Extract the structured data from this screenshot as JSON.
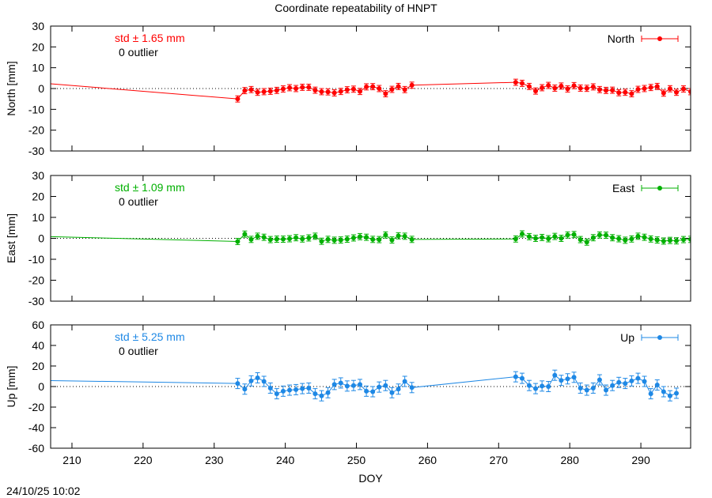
{
  "title": "Coordinate repeatability of HNPT",
  "timestamp": "24/10/25 10:02",
  "chart_data": [
    {
      "type": "line",
      "component": "North",
      "ylabel": "North [mm]",
      "xlabel": "",
      "ylim": [
        -30,
        30
      ],
      "yticks": [
        -30,
        -20,
        -10,
        0,
        10,
        20,
        30
      ],
      "xlim": [
        207,
        297
      ],
      "xticks": [
        210,
        220,
        230,
        240,
        250,
        260,
        270,
        280,
        290
      ],
      "color": "#ff0000",
      "std_label": "std ± 1.65 mm",
      "outlier_label": "0 outlier",
      "legend": "North",
      "legend_position": "top-right",
      "zero_line": true,
      "series": [
        {
          "name": "North",
          "points": [
            {
              "x": 207,
              "y": 2.3,
              "e": 0
            },
            {
              "x": 233.3,
              "y": -5.0,
              "e": 1.5
            },
            {
              "x": 234.3,
              "y": -1.0,
              "e": 1.5
            },
            {
              "x": 235.2,
              "y": -0.5,
              "e": 1.5
            },
            {
              "x": 236.1,
              "y": -1.8,
              "e": 1.5
            },
            {
              "x": 237.0,
              "y": -1.5,
              "e": 1.5
            },
            {
              "x": 237.9,
              "y": -1.3,
              "e": 1.5
            },
            {
              "x": 238.8,
              "y": -0.9,
              "e": 1.5
            },
            {
              "x": 239.7,
              "y": -0.2,
              "e": 1.5
            },
            {
              "x": 240.6,
              "y": 0.4,
              "e": 1.5
            },
            {
              "x": 241.5,
              "y": 0.0,
              "e": 1.5
            },
            {
              "x": 242.4,
              "y": 0.6,
              "e": 1.5
            },
            {
              "x": 243.3,
              "y": 0.6,
              "e": 1.5
            },
            {
              "x": 244.2,
              "y": -0.8,
              "e": 1.5
            },
            {
              "x": 245.1,
              "y": -1.5,
              "e": 1.5
            },
            {
              "x": 246.0,
              "y": -1.6,
              "e": 1.5
            },
            {
              "x": 246.9,
              "y": -2.1,
              "e": 1.5
            },
            {
              "x": 247.8,
              "y": -1.4,
              "e": 1.5
            },
            {
              "x": 248.7,
              "y": -0.6,
              "e": 1.5
            },
            {
              "x": 249.6,
              "y": -0.3,
              "e": 1.5
            },
            {
              "x": 250.5,
              "y": -1.4,
              "e": 1.5
            },
            {
              "x": 251.4,
              "y": 0.8,
              "e": 1.5
            },
            {
              "x": 252.3,
              "y": 0.9,
              "e": 1.5
            },
            {
              "x": 253.2,
              "y": 0.0,
              "e": 1.5
            },
            {
              "x": 254.1,
              "y": -2.5,
              "e": 1.5
            },
            {
              "x": 255.0,
              "y": -0.4,
              "e": 1.5
            },
            {
              "x": 255.9,
              "y": 1.0,
              "e": 1.5
            },
            {
              "x": 256.8,
              "y": -0.5,
              "e": 1.5
            },
            {
              "x": 257.8,
              "y": 1.6,
              "e": 1.5
            },
            {
              "x": 272.4,
              "y": 3.0,
              "e": 1.5
            },
            {
              "x": 273.3,
              "y": 2.5,
              "e": 1.5
            },
            {
              "x": 274.3,
              "y": 1.0,
              "e": 1.5
            },
            {
              "x": 275.2,
              "y": -1.2,
              "e": 1.5
            },
            {
              "x": 276.1,
              "y": 0.4,
              "e": 1.5
            },
            {
              "x": 277.0,
              "y": 1.5,
              "e": 1.5
            },
            {
              "x": 277.9,
              "y": 0.2,
              "e": 1.5
            },
            {
              "x": 278.8,
              "y": 1.2,
              "e": 1.5
            },
            {
              "x": 279.7,
              "y": -0.2,
              "e": 1.5
            },
            {
              "x": 280.6,
              "y": 1.4,
              "e": 1.5
            },
            {
              "x": 281.5,
              "y": 0.2,
              "e": 1.5
            },
            {
              "x": 282.4,
              "y": 0.1,
              "e": 1.5
            },
            {
              "x": 283.3,
              "y": 0.8,
              "e": 1.5
            },
            {
              "x": 284.2,
              "y": -0.5,
              "e": 1.5
            },
            {
              "x": 285.1,
              "y": -0.9,
              "e": 1.5
            },
            {
              "x": 286.0,
              "y": -0.8,
              "e": 1.5
            },
            {
              "x": 286.9,
              "y": -2.0,
              "e": 1.5
            },
            {
              "x": 287.8,
              "y": -1.8,
              "e": 1.5
            },
            {
              "x": 288.7,
              "y": -2.5,
              "e": 1.5
            },
            {
              "x": 289.6,
              "y": -0.4,
              "e": 1.5
            },
            {
              "x": 290.5,
              "y": 0.0,
              "e": 1.5
            },
            {
              "x": 291.4,
              "y": 0.5,
              "e": 1.5
            },
            {
              "x": 292.3,
              "y": 1.0,
              "e": 1.5
            },
            {
              "x": 293.2,
              "y": -2.2,
              "e": 1.5
            },
            {
              "x": 294.1,
              "y": -0.1,
              "e": 1.5
            },
            {
              "x": 295.0,
              "y": -1.8,
              "e": 1.5
            },
            {
              "x": 296.0,
              "y": -0.2,
              "e": 1.5
            },
            {
              "x": 297.0,
              "y": -1.5,
              "e": 1.5
            }
          ]
        }
      ]
    },
    {
      "type": "line",
      "component": "East",
      "ylabel": "East [mm]",
      "xlabel": "",
      "ylim": [
        -30,
        30
      ],
      "yticks": [
        -30,
        -20,
        -10,
        0,
        10,
        20,
        30
      ],
      "xlim": [
        207,
        297
      ],
      "xticks": [
        210,
        220,
        230,
        240,
        250,
        260,
        270,
        280,
        290
      ],
      "color": "#00b000",
      "std_label": "std ± 1.09 mm",
      "outlier_label": "0 outlier",
      "legend": "East",
      "legend_position": "top-right",
      "zero_line": true,
      "series": [
        {
          "name": "East",
          "points": [
            {
              "x": 207,
              "y": 0.8,
              "e": 0
            },
            {
              "x": 233.3,
              "y": -1.5,
              "e": 1.5
            },
            {
              "x": 234.3,
              "y": 2.0,
              "e": 1.5
            },
            {
              "x": 235.2,
              "y": -0.5,
              "e": 1.5
            },
            {
              "x": 236.1,
              "y": 1.0,
              "e": 1.5
            },
            {
              "x": 237.0,
              "y": 0.5,
              "e": 1.5
            },
            {
              "x": 237.9,
              "y": -0.6,
              "e": 1.5
            },
            {
              "x": 238.8,
              "y": -0.4,
              "e": 1.5
            },
            {
              "x": 239.7,
              "y": -0.4,
              "e": 1.5
            },
            {
              "x": 240.6,
              "y": -0.2,
              "e": 1.5
            },
            {
              "x": 241.5,
              "y": 0.3,
              "e": 1.5
            },
            {
              "x": 242.4,
              "y": -0.3,
              "e": 1.5
            },
            {
              "x": 243.3,
              "y": 0.2,
              "e": 1.5
            },
            {
              "x": 244.2,
              "y": 1.0,
              "e": 1.5
            },
            {
              "x": 245.1,
              "y": -1.4,
              "e": 1.5
            },
            {
              "x": 246.0,
              "y": -0.5,
              "e": 1.5
            },
            {
              "x": 246.9,
              "y": -0.9,
              "e": 1.5
            },
            {
              "x": 247.8,
              "y": -0.8,
              "e": 1.5
            },
            {
              "x": 248.7,
              "y": -0.4,
              "e": 1.5
            },
            {
              "x": 249.6,
              "y": 0.2,
              "e": 1.5
            },
            {
              "x": 250.5,
              "y": 0.8,
              "e": 1.5
            },
            {
              "x": 251.4,
              "y": 0.5,
              "e": 1.5
            },
            {
              "x": 252.3,
              "y": -0.5,
              "e": 1.5
            },
            {
              "x": 253.2,
              "y": -0.6,
              "e": 1.5
            },
            {
              "x": 254.1,
              "y": 1.6,
              "e": 1.5
            },
            {
              "x": 255.0,
              "y": -0.8,
              "e": 1.5
            },
            {
              "x": 255.9,
              "y": 1.2,
              "e": 1.5
            },
            {
              "x": 256.8,
              "y": 1.0,
              "e": 1.5
            },
            {
              "x": 257.8,
              "y": -0.5,
              "e": 1.5
            },
            {
              "x": 272.4,
              "y": -0.3,
              "e": 1.5
            },
            {
              "x": 273.3,
              "y": 2.1,
              "e": 1.5
            },
            {
              "x": 274.3,
              "y": 0.8,
              "e": 1.5
            },
            {
              "x": 275.2,
              "y": 0.0,
              "e": 1.5
            },
            {
              "x": 276.1,
              "y": 0.4,
              "e": 1.5
            },
            {
              "x": 277.0,
              "y": -0.2,
              "e": 1.5
            },
            {
              "x": 277.9,
              "y": 0.9,
              "e": 1.5
            },
            {
              "x": 278.8,
              "y": 0.0,
              "e": 1.5
            },
            {
              "x": 279.7,
              "y": 1.6,
              "e": 1.5
            },
            {
              "x": 280.6,
              "y": 1.8,
              "e": 1.5
            },
            {
              "x": 281.5,
              "y": -0.6,
              "e": 1.5
            },
            {
              "x": 282.4,
              "y": -1.8,
              "e": 1.5
            },
            {
              "x": 283.3,
              "y": 0.3,
              "e": 1.5
            },
            {
              "x": 284.2,
              "y": 1.6,
              "e": 1.5
            },
            {
              "x": 285.1,
              "y": 1.5,
              "e": 1.5
            },
            {
              "x": 286.0,
              "y": 0.3,
              "e": 1.5
            },
            {
              "x": 286.9,
              "y": -0.2,
              "e": 1.5
            },
            {
              "x": 287.8,
              "y": -0.9,
              "e": 1.5
            },
            {
              "x": 288.7,
              "y": -0.3,
              "e": 1.5
            },
            {
              "x": 289.6,
              "y": 1.0,
              "e": 1.5
            },
            {
              "x": 290.5,
              "y": 0.5,
              "e": 1.5
            },
            {
              "x": 291.4,
              "y": -0.3,
              "e": 1.5
            },
            {
              "x": 292.3,
              "y": -0.8,
              "e": 1.5
            },
            {
              "x": 293.2,
              "y": -1.3,
              "e": 1.5
            },
            {
              "x": 294.1,
              "y": -1.0,
              "e": 1.5
            },
            {
              "x": 295.0,
              "y": -1.2,
              "e": 1.5
            },
            {
              "x": 296.0,
              "y": -0.6,
              "e": 1.5
            },
            {
              "x": 297.0,
              "y": -0.5,
              "e": 1.5
            }
          ]
        }
      ]
    },
    {
      "type": "line",
      "component": "Up",
      "ylabel": "Up [mm]",
      "xlabel": "DOY",
      "ylim": [
        -60,
        60
      ],
      "yticks": [
        -60,
        -40,
        -20,
        0,
        20,
        40,
        60
      ],
      "xlim": [
        207,
        297
      ],
      "xticks": [
        210,
        220,
        230,
        240,
        250,
        260,
        270,
        280,
        290
      ],
      "color": "#1e88e5",
      "std_label": "std ± 5.25 mm",
      "outlier_label": "0 outlier",
      "legend": "Up",
      "legend_position": "top-right",
      "zero_line": true,
      "series": [
        {
          "name": "Up",
          "points": [
            {
              "x": 207,
              "y": 5.8,
              "e": 0
            },
            {
              "x": 233.3,
              "y": 3.0,
              "e": 5
            },
            {
              "x": 234.3,
              "y": -2.5,
              "e": 5
            },
            {
              "x": 235.2,
              "y": 5.5,
              "e": 5
            },
            {
              "x": 236.1,
              "y": 8.5,
              "e": 5
            },
            {
              "x": 237.0,
              "y": 5.0,
              "e": 5
            },
            {
              "x": 237.9,
              "y": -1.5,
              "e": 5
            },
            {
              "x": 238.8,
              "y": -7.0,
              "e": 5
            },
            {
              "x": 239.7,
              "y": -4.5,
              "e": 5
            },
            {
              "x": 240.6,
              "y": -3.5,
              "e": 5
            },
            {
              "x": 241.5,
              "y": -3.0,
              "e": 5
            },
            {
              "x": 242.4,
              "y": -2.0,
              "e": 5
            },
            {
              "x": 243.3,
              "y": -1.5,
              "e": 5
            },
            {
              "x": 244.2,
              "y": -7.0,
              "e": 5
            },
            {
              "x": 245.1,
              "y": -9.0,
              "e": 5
            },
            {
              "x": 246.0,
              "y": -6.0,
              "e": 5
            },
            {
              "x": 246.9,
              "y": 2.0,
              "e": 5
            },
            {
              "x": 247.8,
              "y": 3.5,
              "e": 5
            },
            {
              "x": 248.7,
              "y": 0.5,
              "e": 5
            },
            {
              "x": 249.6,
              "y": 1.0,
              "e": 5
            },
            {
              "x": 250.5,
              "y": 2.0,
              "e": 5
            },
            {
              "x": 251.4,
              "y": -4.5,
              "e": 5
            },
            {
              "x": 252.3,
              "y": -5.0,
              "e": 5
            },
            {
              "x": 253.2,
              "y": -0.5,
              "e": 5
            },
            {
              "x": 254.1,
              "y": 1.0,
              "e": 5
            },
            {
              "x": 255.0,
              "y": -6.0,
              "e": 5
            },
            {
              "x": 255.9,
              "y": -2.5,
              "e": 5
            },
            {
              "x": 256.8,
              "y": 5.0,
              "e": 5
            },
            {
              "x": 257.8,
              "y": -1.0,
              "e": 5
            },
            {
              "x": 272.4,
              "y": 9.5,
              "e": 5
            },
            {
              "x": 273.3,
              "y": 8.0,
              "e": 5
            },
            {
              "x": 274.3,
              "y": 1.0,
              "e": 5
            },
            {
              "x": 275.2,
              "y": -2.0,
              "e": 5
            },
            {
              "x": 276.1,
              "y": 0.5,
              "e": 5
            },
            {
              "x": 277.0,
              "y": 0.0,
              "e": 5
            },
            {
              "x": 277.9,
              "y": 11.0,
              "e": 5
            },
            {
              "x": 278.8,
              "y": 6.0,
              "e": 5
            },
            {
              "x": 279.7,
              "y": 7.5,
              "e": 5
            },
            {
              "x": 280.6,
              "y": 9.0,
              "e": 5
            },
            {
              "x": 281.5,
              "y": -1.5,
              "e": 5
            },
            {
              "x": 282.4,
              "y": -3.5,
              "e": 5
            },
            {
              "x": 283.3,
              "y": -1.5,
              "e": 5
            },
            {
              "x": 284.2,
              "y": 6.5,
              "e": 5
            },
            {
              "x": 285.1,
              "y": -3.5,
              "e": 5
            },
            {
              "x": 286.0,
              "y": 1.0,
              "e": 5
            },
            {
              "x": 286.9,
              "y": 4.0,
              "e": 5
            },
            {
              "x": 287.8,
              "y": 3.0,
              "e": 5
            },
            {
              "x": 288.7,
              "y": 5.5,
              "e": 5
            },
            {
              "x": 289.6,
              "y": 8.0,
              "e": 5
            },
            {
              "x": 290.5,
              "y": 5.0,
              "e": 5
            },
            {
              "x": 291.4,
              "y": -7.0,
              "e": 5
            },
            {
              "x": 292.3,
              "y": 1.5,
              "e": 5
            },
            {
              "x": 293.2,
              "y": -5.0,
              "e": 5
            },
            {
              "x": 294.1,
              "y": -9.0,
              "e": 5
            },
            {
              "x": 295.0,
              "y": -6.5,
              "e": 5
            }
          ]
        }
      ]
    }
  ]
}
